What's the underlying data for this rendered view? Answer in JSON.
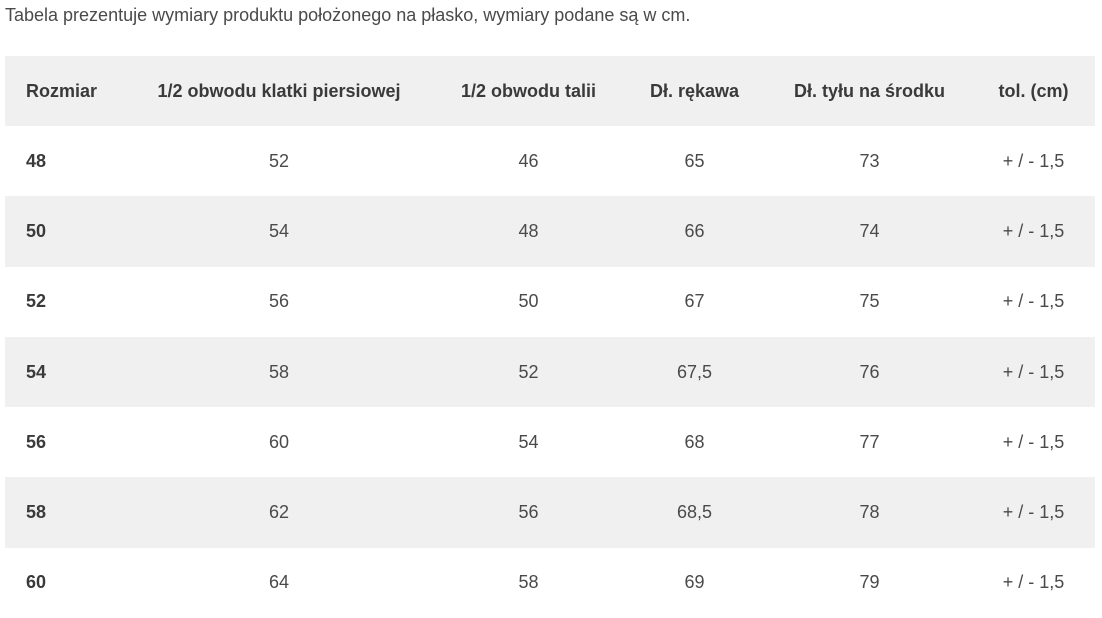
{
  "intro_text": "Tabela prezentuje wymiary produktu położonego na płasko, wymiary podane są w cm.",
  "table": {
    "headers": [
      "Rozmiar",
      "1/2 obwodu klatki piersiowej",
      "1/2 obwodu talii",
      "Dł. rękawa",
      "Dł. tyłu na środku",
      "tol. (cm)"
    ],
    "rows": [
      [
        "48",
        "52",
        "46",
        "65",
        "73",
        "+ / - 1,5"
      ],
      [
        "50",
        "54",
        "48",
        "66",
        "74",
        "+ / - 1,5"
      ],
      [
        "52",
        "56",
        "50",
        "67",
        "75",
        "+ / - 1,5"
      ],
      [
        "54",
        "58",
        "52",
        "67,5",
        "76",
        "+ / - 1,5"
      ],
      [
        "56",
        "60",
        "54",
        "68",
        "77",
        "+ / - 1,5"
      ],
      [
        "58",
        "62",
        "56",
        "68,5",
        "78",
        "+ / - 1,5"
      ],
      [
        "60",
        "64",
        "58",
        "69",
        "79",
        "+ / - 1,5"
      ]
    ]
  }
}
